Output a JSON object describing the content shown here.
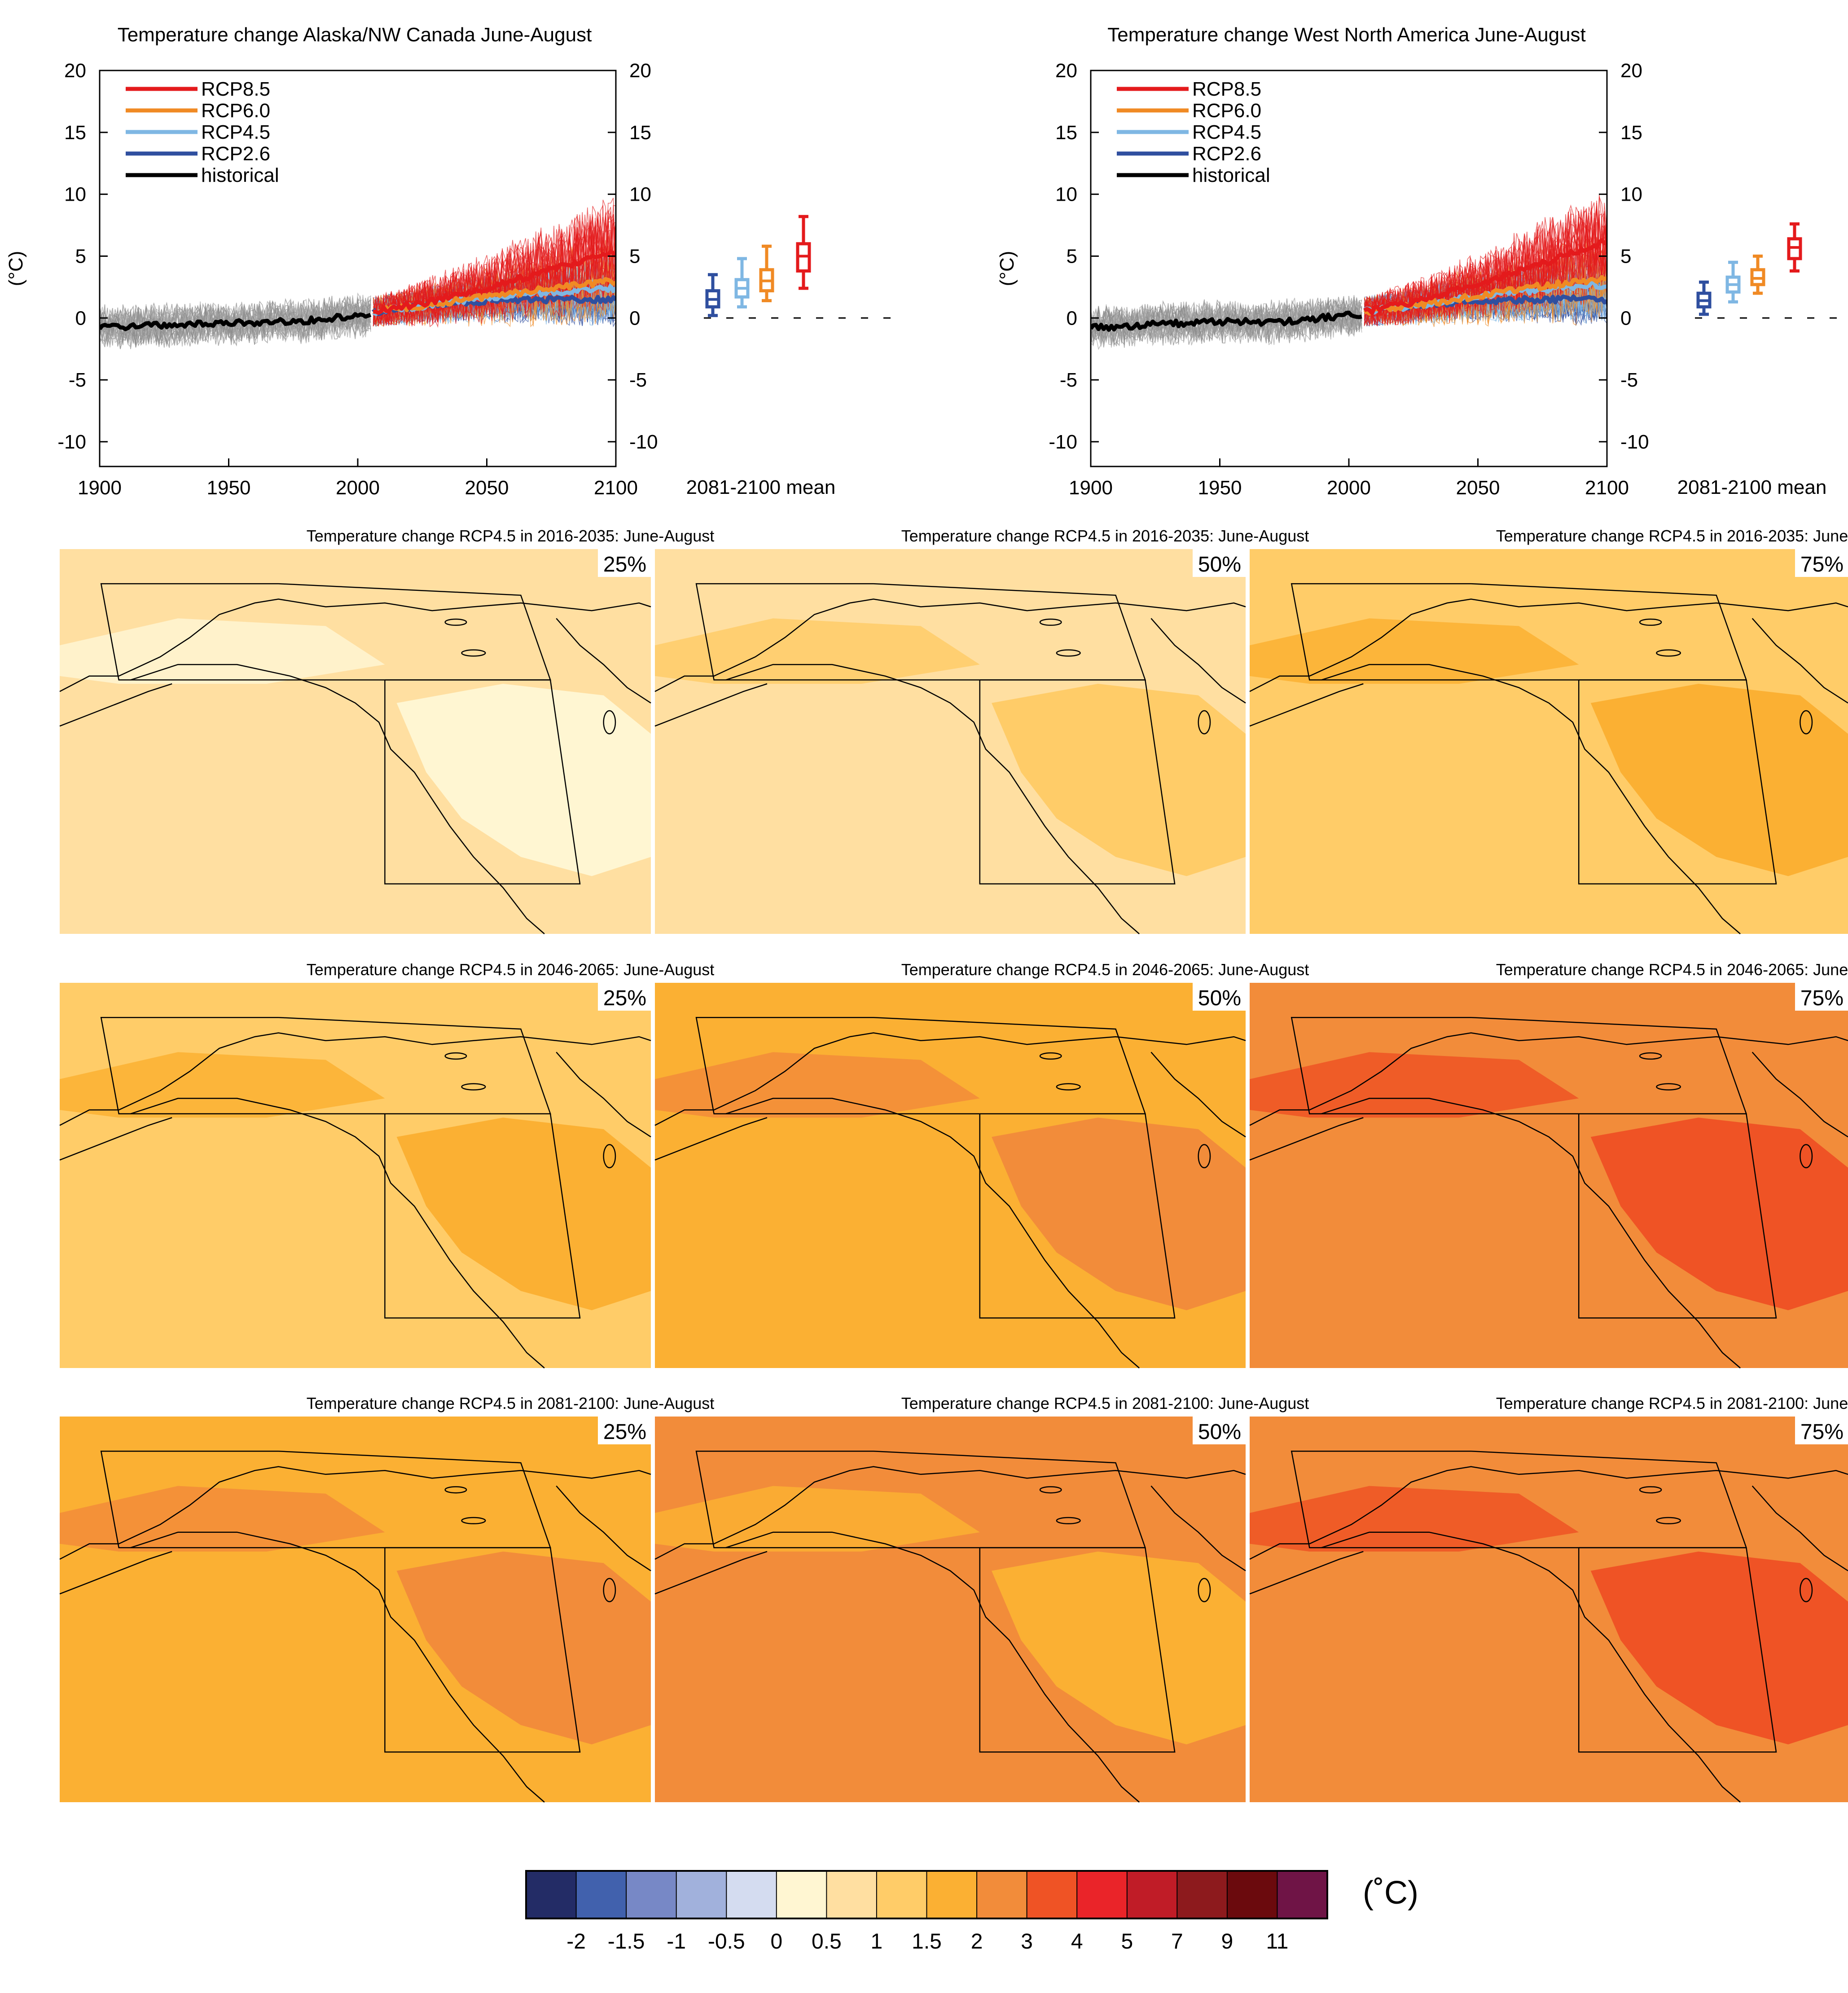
{
  "chart_data": {
    "timeseries": [
      {
        "type": "line",
        "title": "Temperature change Alaska/NW Canada June-August",
        "ylabel": "(°C)",
        "xlim": [
          1900,
          2100
        ],
        "ylim": [
          -12,
          20
        ],
        "xticks": [
          1900,
          1950,
          2000,
          2050,
          2100
        ],
        "xtick_labels": [
          "1900",
          "1950",
          "2000",
          "2050",
          "2100"
        ],
        "yticks": [
          20,
          15,
          10,
          5,
          0,
          -5,
          -10
        ],
        "ytick_labels": [
          "20",
          "15",
          "10",
          "5",
          "0",
          "-5",
          "-10"
        ],
        "legend_position": "top-left",
        "series": [
          {
            "name": "RCP8.5",
            "color": "#e41a1c",
            "x": [
              2006,
              2025,
              2050,
              2075,
              2100
            ],
            "y": [
              0.5,
              1.2,
              2.4,
              3.9,
              5.3
            ]
          },
          {
            "name": "RCP6.0",
            "color": "#f08a24",
            "x": [
              2006,
              2025,
              2050,
              2075,
              2100
            ],
            "y": [
              0.5,
              1.0,
              1.7,
              2.4,
              3.0
            ]
          },
          {
            "name": "RCP4.5",
            "color": "#7fb7e3",
            "x": [
              2006,
              2025,
              2050,
              2075,
              2100
            ],
            "y": [
              0.5,
              1.0,
              1.7,
              2.1,
              2.4
            ]
          },
          {
            "name": "RCP2.6",
            "color": "#2f4f9f",
            "x": [
              2006,
              2025,
              2050,
              2075,
              2100
            ],
            "y": [
              0.5,
              1.0,
              1.4,
              1.5,
              1.5
            ]
          },
          {
            "name": "historical",
            "color": "#000000",
            "x": [
              1900,
              1925,
              1950,
              1975,
              2005
            ],
            "y": [
              -0.8,
              -0.6,
              -0.4,
              -0.3,
              0.3
            ]
          }
        ],
        "boxplot": {
          "label": "2081-2100 mean",
          "boxes": [
            {
              "name": "RCP2.6",
              "color": "#2f4f9f",
              "min": 0.2,
              "q1": 0.9,
              "median": 1.5,
              "q3": 2.2,
              "max": 3.5
            },
            {
              "name": "RCP4.5",
              "color": "#7fb7e3",
              "min": 0.9,
              "q1": 1.7,
              "median": 2.4,
              "q3": 3.1,
              "max": 4.8
            },
            {
              "name": "RCP6.0",
              "color": "#f08a24",
              "min": 1.4,
              "q1": 2.2,
              "median": 3.0,
              "q3": 3.9,
              "max": 5.8
            },
            {
              "name": "RCP8.5",
              "color": "#e41a1c",
              "min": 2.4,
              "q1": 3.8,
              "median": 5.0,
              "q3": 6.0,
              "max": 8.2
            }
          ]
        }
      },
      {
        "type": "line",
        "title": "Temperature change West North America June-August",
        "ylabel": "(°C)",
        "xlim": [
          1900,
          2100
        ],
        "ylim": [
          -12,
          20
        ],
        "xticks": [
          1900,
          1950,
          2000,
          2050,
          2100
        ],
        "xtick_labels": [
          "1900",
          "1950",
          "2000",
          "2050",
          "2100"
        ],
        "yticks": [
          20,
          15,
          10,
          5,
          0,
          -5,
          -10
        ],
        "ytick_labels": [
          "20",
          "15",
          "10",
          "5",
          "0",
          "-5",
          "-10"
        ],
        "legend_position": "top-left",
        "series": [
          {
            "name": "RCP8.5",
            "color": "#e41a1c",
            "x": [
              2006,
              2025,
              2050,
              2075,
              2100
            ],
            "y": [
              0.5,
              1.3,
              2.7,
              4.4,
              6.2
            ]
          },
          {
            "name": "RCP6.0",
            "color": "#f08a24",
            "x": [
              2006,
              2025,
              2050,
              2075,
              2100
            ],
            "y": [
              0.5,
              1.0,
              1.8,
              2.6,
              3.2
            ]
          },
          {
            "name": "RCP4.5",
            "color": "#7fb7e3",
            "x": [
              2006,
              2025,
              2050,
              2075,
              2100
            ],
            "y": [
              0.5,
              1.0,
              1.8,
              2.3,
              2.7
            ]
          },
          {
            "name": "RCP2.6",
            "color": "#2f4f9f",
            "x": [
              2006,
              2025,
              2050,
              2075,
              2100
            ],
            "y": [
              0.5,
              1.0,
              1.4,
              1.5,
              1.5
            ]
          },
          {
            "name": "historical",
            "color": "#000000",
            "x": [
              1900,
              1925,
              1950,
              1975,
              2005
            ],
            "y": [
              -0.8,
              -0.5,
              -0.3,
              -0.3,
              0.3
            ]
          }
        ],
        "boxplot": {
          "label": "2081-2100 mean",
          "boxes": [
            {
              "name": "RCP2.6",
              "color": "#2f4f9f",
              "min": 0.3,
              "q1": 0.9,
              "median": 1.4,
              "q3": 2.0,
              "max": 2.9
            },
            {
              "name": "RCP4.5",
              "color": "#7fb7e3",
              "min": 1.3,
              "q1": 2.1,
              "median": 2.7,
              "q3": 3.3,
              "max": 4.5
            },
            {
              "name": "RCP6.0",
              "color": "#f08a24",
              "min": 2.0,
              "q1": 2.7,
              "median": 3.2,
              "q3": 3.9,
              "max": 5.0
            },
            {
              "name": "RCP8.5",
              "color": "#e41a1c",
              "min": 3.8,
              "q1": 4.8,
              "median": 5.7,
              "q3": 6.4,
              "max": 7.6
            }
          ]
        }
      }
    ],
    "maps": {
      "type": "heatmap",
      "rows": [
        {
          "title": "Temperature change RCP4.5 in 2016-2035: June-August",
          "panels": [
            {
              "percentile": "25%",
              "base_level": 6,
              "patch_level": 5
            },
            {
              "percentile": "50%",
              "base_level": 6,
              "patch_level": 7
            },
            {
              "percentile": "75%",
              "base_level": 7,
              "patch_level": 8
            }
          ]
        },
        {
          "title": "Temperature change RCP4.5 in 2046-2065: June-August",
          "panels": [
            {
              "percentile": "25%",
              "base_level": 7,
              "patch_level": 8
            },
            {
              "percentile": "50%",
              "base_level": 8,
              "patch_level": 9
            },
            {
              "percentile": "75%",
              "base_level": 9,
              "patch_level": 10
            }
          ]
        },
        {
          "title": "Temperature change RCP4.5 in 2081-2100: June-August",
          "panels": [
            {
              "percentile": "25%",
              "base_level": 8,
              "patch_level": 9
            },
            {
              "percentile": "50%",
              "base_level": 9,
              "patch_level": 8
            },
            {
              "percentile": "75%",
              "base_level": 9,
              "patch_level": 10
            }
          ]
        }
      ]
    },
    "colorbar": {
      "unit": "(˚C)",
      "colors": [
        "#232c66",
        "#4161ad",
        "#7788c6",
        "#a1b1dc",
        "#d4dcf0",
        "#fff6d2",
        "#ffdfa1",
        "#ffcc68",
        "#fbb033",
        "#f28c3a",
        "#ef5325",
        "#ea2429",
        "#c01c27",
        "#8d1a1d",
        "#6b0a0d",
        "#6f1446"
      ],
      "tick_labels": [
        "-2",
        "-1.5",
        "-1",
        "-0.5",
        "0",
        "0.5",
        "1",
        "1.5",
        "2",
        "3",
        "4",
        "5",
        "7",
        "9",
        "11"
      ]
    }
  }
}
